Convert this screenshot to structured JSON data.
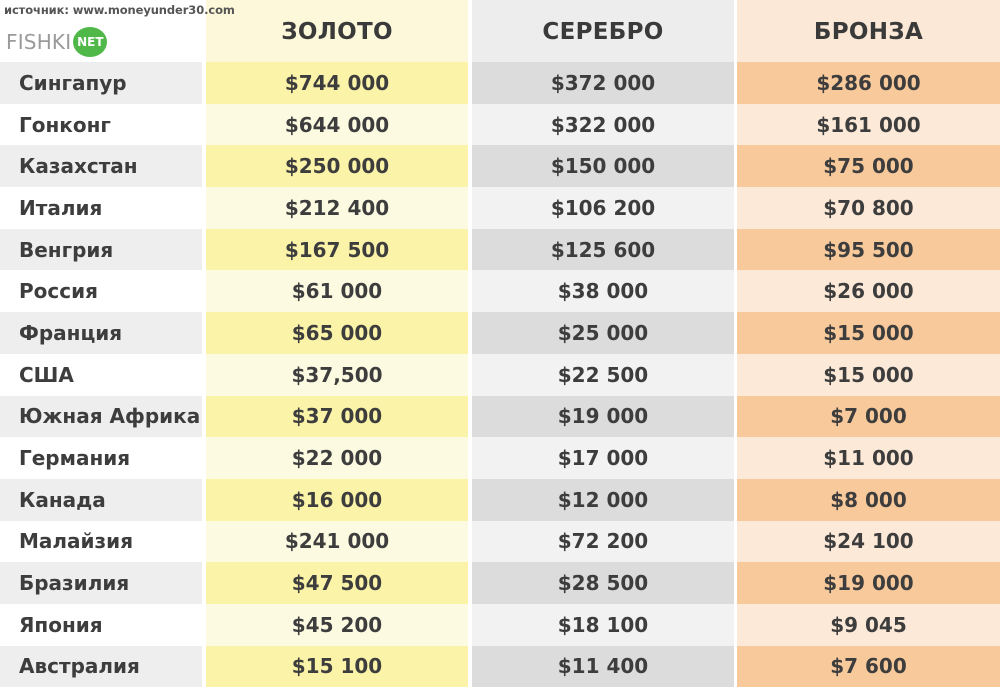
{
  "source_text": "источник: www.moneyunder30.com",
  "logo": {
    "text": "FISHKI",
    "badge": "NET",
    "badge_color": "#4fb849"
  },
  "columns": {
    "gold": "ЗОЛОТО",
    "silver": "СЕРЕБРО",
    "bronze": "БРОНЗА"
  },
  "colors": {
    "gold_dark": "#fbf3a8",
    "silver_dark": "#dcdcdc",
    "bronze_dark": "#f8c99b"
  },
  "rows": [
    {
      "country": "Сингапур",
      "gold": "$744 000",
      "silver": "$372 000",
      "bronze": "$286 000"
    },
    {
      "country": "Гонконг",
      "gold": "$644 000",
      "silver": "$322 000",
      "bronze": "$161 000"
    },
    {
      "country": "Казахстан",
      "gold": "$250 000",
      "silver": "$150 000",
      "bronze": "$75 000"
    },
    {
      "country": "Италия",
      "gold": "$212 400",
      "silver": "$106 200",
      "bronze": "$70 800"
    },
    {
      "country": "Венгрия",
      "gold": "$167 500",
      "silver": "$125 600",
      "bronze": "$95 500"
    },
    {
      "country": "Россия",
      "gold": "$61 000",
      "silver": "$38 000",
      "bronze": "$26 000"
    },
    {
      "country": "Франция",
      "gold": "$65 000",
      "silver": "$25 000",
      "bronze": "$15 000"
    },
    {
      "country": "США",
      "gold": "$37,500",
      "silver": "$22 500",
      "bronze": "$15 000"
    },
    {
      "country": "Южная Африка",
      "gold": "$37 000",
      "silver": "$19 000",
      "bronze": "$7 000"
    },
    {
      "country": "Германия",
      "gold": "$22 000",
      "silver": "$17 000",
      "bronze": "$11 000"
    },
    {
      "country": "Канада",
      "gold": "$16 000",
      "silver": "$12 000",
      "bronze": "$8 000"
    },
    {
      "country": "Малайзия",
      "gold": "$241 000",
      "silver": "$72 200",
      "bronze": "$24 100"
    },
    {
      "country": "Бразилия",
      "gold": "$47 500",
      "silver": "$28 500",
      "bronze": "$19 000"
    },
    {
      "country": "Япония",
      "gold": "$45 200",
      "silver": "$18 100",
      "bronze": "$9 045"
    },
    {
      "country": "Австралия",
      "gold": "$15 100",
      "silver": "$11 400",
      "bronze": "$7 600"
    }
  ]
}
